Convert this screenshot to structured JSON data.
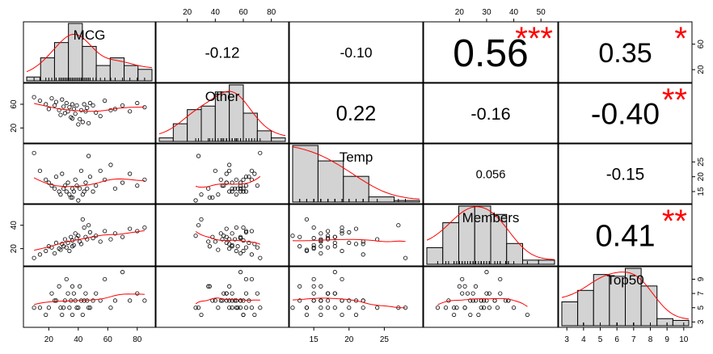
{
  "chart_data": {
    "type": "scatter",
    "title": "",
    "variables": [
      "MCG",
      "Other",
      "Temp",
      "Members",
      "Top50"
    ],
    "grid": false,
    "colors": {
      "hist_fill": "#d3d3d3",
      "smooth": "#ff0000",
      "stars": "#ff0000",
      "points": "#000000",
      "frame": "#000000"
    },
    "axis_ticks": {
      "MCG": [
        "20",
        "40",
        "60",
        "80"
      ],
      "Other": [
        "20",
        "40",
        "60",
        "80"
      ],
      "Temp": [
        "15",
        "20",
        "25"
      ],
      "Members": [
        "20",
        "30",
        "40",
        "50"
      ],
      "Top50": [
        "3",
        "4",
        "5",
        "6",
        "7",
        "8",
        "9",
        "10"
      ]
    },
    "correlations": [
      {
        "pair": [
          "MCG",
          "Other"
        ],
        "r": "-0.12",
        "stars": ""
      },
      {
        "pair": [
          "MCG",
          "Temp"
        ],
        "r": "-0.10",
        "stars": ""
      },
      {
        "pair": [
          "MCG",
          "Members"
        ],
        "r": "0.56",
        "stars": "***"
      },
      {
        "pair": [
          "MCG",
          "Top50"
        ],
        "r": "0.35",
        "stars": "*"
      },
      {
        "pair": [
          "Other",
          "Temp"
        ],
        "r": "0.22",
        "stars": ""
      },
      {
        "pair": [
          "Other",
          "Members"
        ],
        "r": "-0.16",
        "stars": ""
      },
      {
        "pair": [
          "Other",
          "Top50"
        ],
        "r": "-0.40",
        "stars": "**"
      },
      {
        "pair": [
          "Temp",
          "Members"
        ],
        "r": "0.056",
        "stars": ""
      },
      {
        "pair": [
          "Temp",
          "Top50"
        ],
        "r": "-0.15",
        "stars": ""
      },
      {
        "pair": [
          "Members",
          "Top50"
        ],
        "r": "0.41",
        "stars": "**"
      }
    ],
    "histograms": {
      "MCG": {
        "range": [
          0,
          90
        ],
        "counts": [
          1,
          6,
          10,
          15,
          9,
          4,
          6,
          4,
          3
        ]
      },
      "Other": {
        "range": [
          0,
          90
        ],
        "counts": [
          1,
          5,
          9,
          10,
          14,
          16,
          8,
          3,
          1
        ]
      },
      "Temp": {
        "range": [
          12,
          30
        ],
        "counts": [
          11,
          8,
          5,
          1,
          0.3
        ]
      },
      "Members": {
        "range": [
          10,
          55
        ],
        "counts": [
          4,
          10,
          14,
          14,
          12,
          5,
          1,
          1
        ]
      },
      "Top50": {
        "range": [
          2.5,
          10
        ],
        "counts": [
          2.7,
          4,
          5.8,
          5.6,
          6.5,
          4.5,
          0.8,
          0.6
        ]
      }
    },
    "observations": [
      {
        "MCG": 10,
        "Other": 72,
        "Temp": 28,
        "Members": 12,
        "Top50": 5
      },
      {
        "MCG": 14,
        "Other": 66,
        "Temp": 22,
        "Members": 15,
        "Top50": 5
      },
      {
        "MCG": 18,
        "Other": 60,
        "Temp": 19,
        "Members": 18,
        "Top50": 4
      },
      {
        "MCG": 20,
        "Other": 52,
        "Temp": 18,
        "Members": 22,
        "Top50": 5
      },
      {
        "MCG": 22,
        "Other": 70,
        "Temp": 17,
        "Members": 21,
        "Top50": 7
      },
      {
        "MCG": 24,
        "Other": 58,
        "Temp": 16,
        "Members": 16,
        "Top50": 6
      },
      {
        "MCG": 25,
        "Other": 64,
        "Temp": 20,
        "Members": 25,
        "Top50": 6
      },
      {
        "MCG": 27,
        "Other": 50,
        "Temp": 15,
        "Members": 20,
        "Top50": 8
      },
      {
        "MCG": 28,
        "Other": 42,
        "Temp": 14,
        "Members": 19,
        "Top50": 5
      },
      {
        "MCG": 29,
        "Other": 68,
        "Temp": 21,
        "Members": 24,
        "Top50": 4
      },
      {
        "MCG": 30,
        "Other": 56,
        "Temp": 16,
        "Members": 22,
        "Top50": 5
      },
      {
        "MCG": 31,
        "Other": 45,
        "Temp": 17,
        "Members": 28,
        "Top50": 6
      },
      {
        "MCG": 32,
        "Other": 62,
        "Temp": 15,
        "Members": 21,
        "Top50": 9
      },
      {
        "MCG": 33,
        "Other": 48,
        "Temp": 18,
        "Members": 25,
        "Top50": 7
      },
      {
        "MCG": 34,
        "Other": 55,
        "Temp": 14,
        "Members": 18,
        "Top50": 5
      },
      {
        "MCG": 35,
        "Other": 38,
        "Temp": 13,
        "Members": 30,
        "Top50": 6
      },
      {
        "MCG": 36,
        "Other": 60,
        "Temp": 16,
        "Members": 27,
        "Top50": 4
      },
      {
        "MCG": 37,
        "Other": 52,
        "Temp": 15,
        "Members": 23,
        "Top50": 7
      },
      {
        "MCG": 38,
        "Other": 44,
        "Temp": 19,
        "Members": 33,
        "Top50": 6
      },
      {
        "MCG": 39,
        "Other": 58,
        "Temp": 17,
        "Members": 29,
        "Top50": 5
      },
      {
        "MCG": 40,
        "Other": 26,
        "Temp": 12,
        "Members": 31,
        "Top50": 5
      },
      {
        "MCG": 41,
        "Other": 35,
        "Temp": 16,
        "Members": 26,
        "Top50": 8
      },
      {
        "MCG": 42,
        "Other": 50,
        "Temp": 22,
        "Members": 24,
        "Top50": 6
      },
      {
        "MCG": 43,
        "Other": 30,
        "Temp": 14,
        "Members": 45,
        "Top50": 4
      },
      {
        "MCG": 44,
        "Other": 60,
        "Temp": 15,
        "Members": 38,
        "Top50": 6
      },
      {
        "MCG": 45,
        "Other": 48,
        "Temp": 18,
        "Members": 30,
        "Top50": 7
      },
      {
        "MCG": 46,
        "Other": 54,
        "Temp": 16,
        "Members": 28,
        "Top50": 6
      },
      {
        "MCG": 48,
        "Other": 62,
        "Temp": 20,
        "Members": 34,
        "Top50": 5
      },
      {
        "MCG": 50,
        "Other": 58,
        "Temp": 15,
        "Members": 29,
        "Top50": 6
      },
      {
        "MCG": 52,
        "Other": 46,
        "Temp": 17,
        "Members": 31,
        "Top50": 7
      },
      {
        "MCG": 55,
        "Other": 40,
        "Temp": 22,
        "Members": 26,
        "Top50": 6
      },
      {
        "MCG": 58,
        "Other": 66,
        "Temp": 19,
        "Members": 35,
        "Top50": 9
      },
      {
        "MCG": 62,
        "Other": 50,
        "Temp": 24,
        "Members": 28,
        "Top50": 5
      },
      {
        "MCG": 65,
        "Other": 52,
        "Temp": 16,
        "Members": 33,
        "Top50": 6
      },
      {
        "MCG": 70,
        "Other": 58,
        "Temp": 18,
        "Members": 30,
        "Top50": 10
      },
      {
        "MCG": 75,
        "Other": 48,
        "Temp": 21,
        "Members": 37,
        "Top50": 6
      },
      {
        "MCG": 80,
        "Other": 62,
        "Temp": 17,
        "Members": 35,
        "Top50": 7
      },
      {
        "MCG": 85,
        "Other": 55,
        "Temp": 19,
        "Members": 38,
        "Top50": 6
      },
      {
        "MCG": 47,
        "Other": 28,
        "Temp": 27,
        "Members": 40,
        "Top50": 5
      },
      {
        "MCG": 36,
        "Other": 36,
        "Temp": 13,
        "Members": 22,
        "Top50": 8
      }
    ]
  }
}
